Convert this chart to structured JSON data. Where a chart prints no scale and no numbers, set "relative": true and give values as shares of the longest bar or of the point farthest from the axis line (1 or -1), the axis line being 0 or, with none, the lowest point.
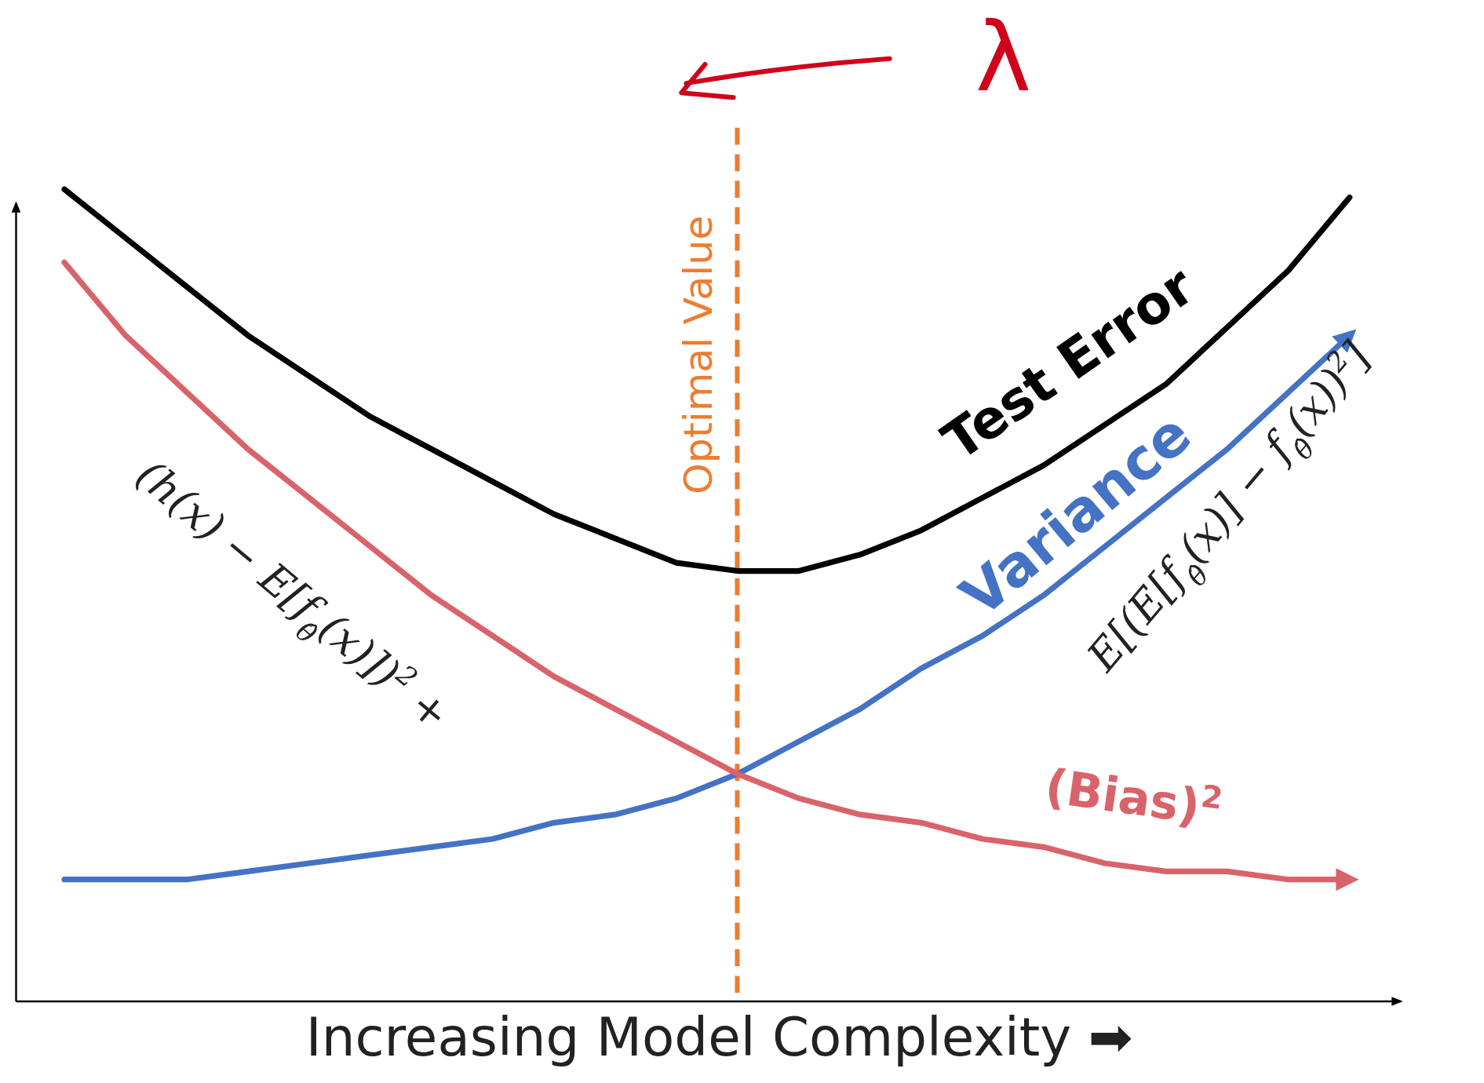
{
  "chart_data": {
    "type": "line",
    "relative": true,
    "xlabel": "Increasing Model Complexity ➡",
    "categories": [
      null,
      null,
      null,
      null,
      null,
      null,
      null,
      null,
      null,
      null,
      null,
      null,
      null,
      null,
      null,
      null,
      null,
      null,
      null,
      null,
      null,
      null
    ],
    "series": [
      {
        "name": "Test Error",
        "color": "#000000",
        "values": [
          1.0,
          0.94,
          0.88,
          0.82,
          0.77,
          0.72,
          0.68,
          0.64,
          0.6,
          0.57,
          0.54,
          0.53,
          0.53,
          0.55,
          0.58,
          0.62,
          0.66,
          0.71,
          0.76,
          0.83,
          0.9,
          0.99
        ]
      },
      {
        "name": "Variance",
        "color": "#4472c4",
        "values": [
          0.15,
          0.15,
          0.15,
          0.16,
          0.17,
          0.18,
          0.19,
          0.2,
          0.22,
          0.23,
          0.25,
          0.28,
          0.32,
          0.36,
          0.41,
          0.45,
          0.5,
          0.56,
          0.62,
          0.68,
          0.75,
          0.82
        ]
      },
      {
        "name": "(Bias)$^{2}$",
        "color": "#d9636a",
        "values": [
          0.91,
          0.82,
          0.75,
          0.68,
          0.62,
          0.56,
          0.5,
          0.45,
          0.4,
          0.36,
          0.32,
          0.28,
          0.25,
          0.23,
          0.22,
          0.2,
          0.19,
          0.17,
          0.16,
          0.16,
          0.15,
          0.15
        ]
      }
    ],
    "annotations": [
      "(h(x) − E[f$_{θ̂}$(x)])$^{2}$ +",
      "E[(E[f$_{θ̂}$(x)] − f$_{θ̂}$(x))$^{2}$]",
      "λ",
      "Optimal Value"
    ]
  }
}
